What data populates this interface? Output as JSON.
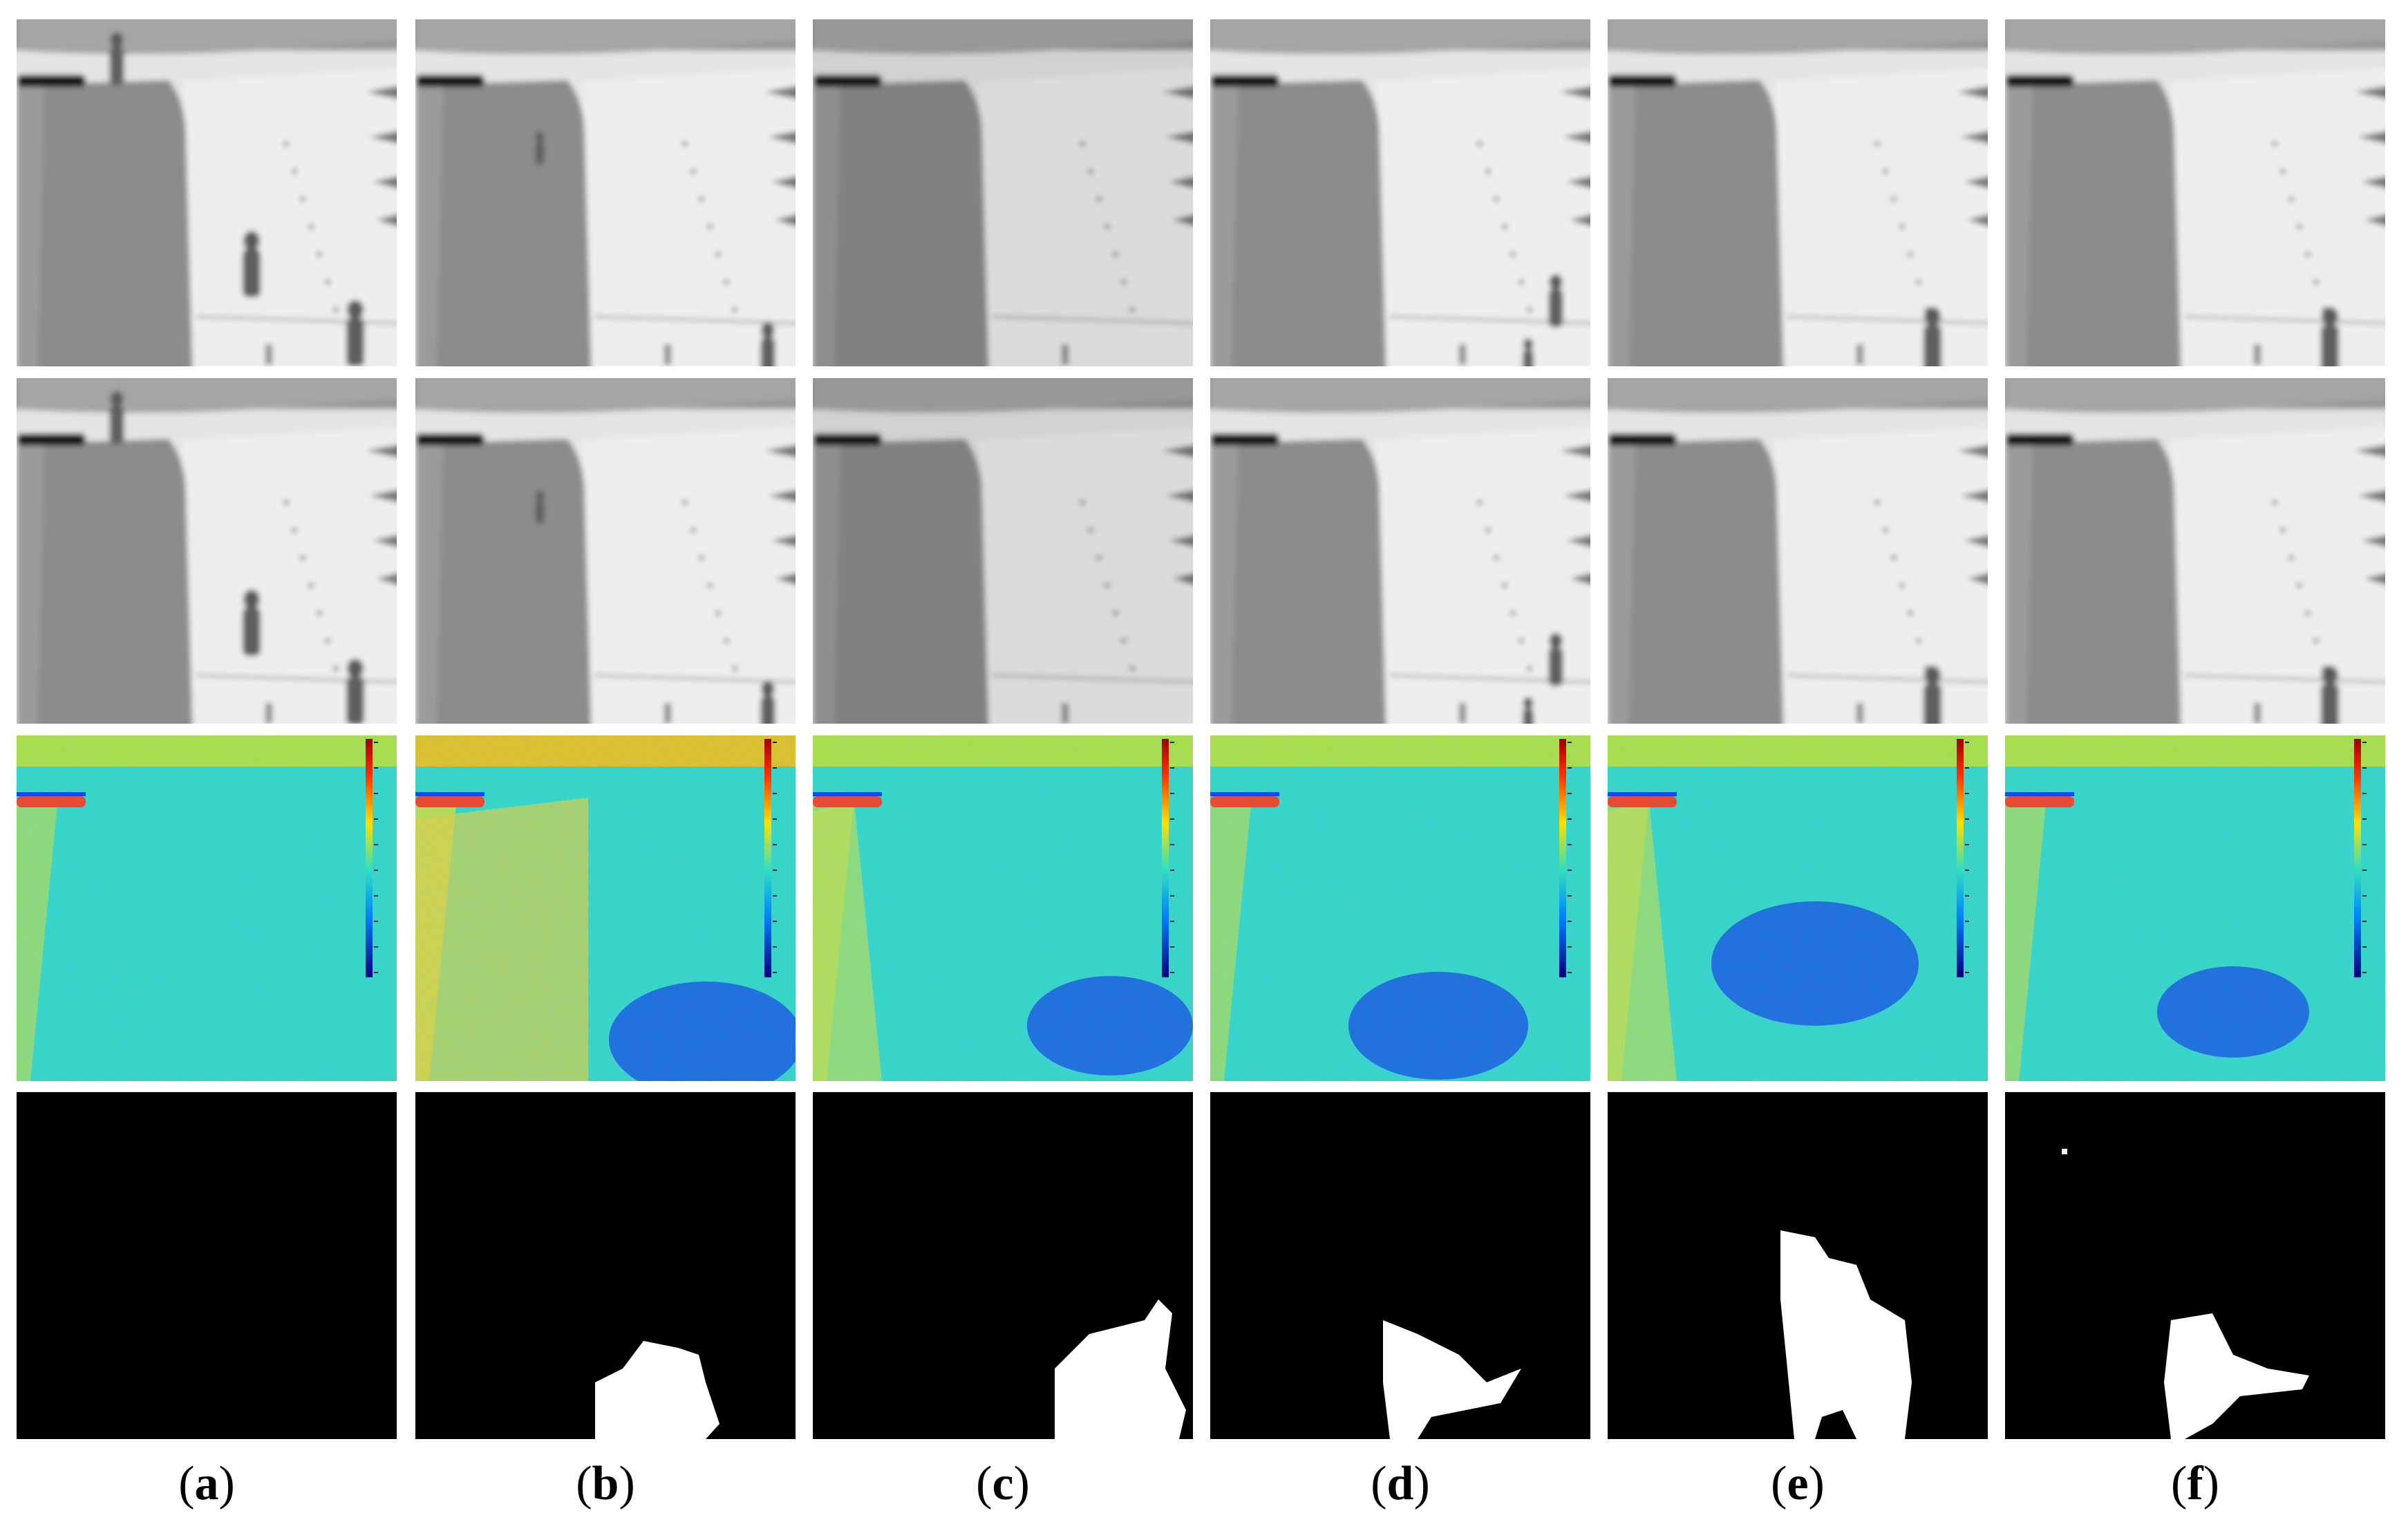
{
  "figure": {
    "rows": [
      "thermal-frame",
      "background-frame",
      "difference-map",
      "detection-mask"
    ],
    "colors": {
      "background": "#ffffff",
      "mask_background": "#000000",
      "mask_foreground": "#ffffff"
    },
    "columns": [
      {
        "id": "a",
        "label_open": "(",
        "label_letter": "a",
        "label_close": ")"
      },
      {
        "id": "b",
        "label_open": "(",
        "label_letter": "b",
        "label_close": ")"
      },
      {
        "id": "c",
        "label_open": "(",
        "label_letter": "c",
        "label_close": ")"
      },
      {
        "id": "d",
        "label_open": "(",
        "label_letter": "d",
        "label_close": ")"
      },
      {
        "id": "e",
        "label_open": "(",
        "label_letter": "e",
        "label_close": ")"
      },
      {
        "id": "f",
        "label_open": "(",
        "label_letter": "f",
        "label_close": ")"
      }
    ]
  }
}
